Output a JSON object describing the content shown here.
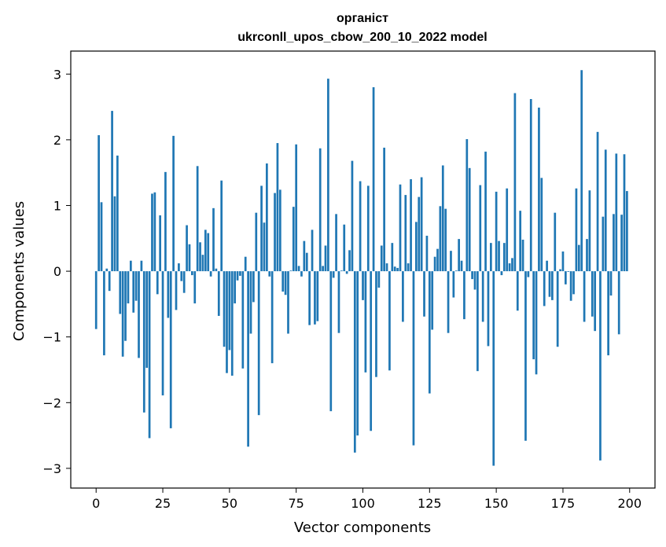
{
  "chart_data": {
    "type": "bar",
    "title_line1": "органіст",
    "title_line2": "ukrconll_upos_cbow_200_10_2022 model",
    "xlabel": "Vector components",
    "ylabel": "Components values",
    "xlim": [
      -9.5,
      209.5
    ],
    "ylim": [
      -3.3,
      3.35
    ],
    "xticks": [
      0,
      25,
      50,
      75,
      100,
      125,
      150,
      175,
      200
    ],
    "xtick_labels": [
      "0",
      "25",
      "50",
      "75",
      "100",
      "125",
      "150",
      "175",
      "200"
    ],
    "yticks": [
      -3,
      -2,
      -1,
      0,
      1,
      2,
      3
    ],
    "ytick_labels": [
      "−3",
      "−2",
      "−1",
      "0",
      "1",
      "2",
      "3"
    ],
    "bar_color": "#1f77b4",
    "grid": false,
    "x": [
      0,
      1,
      2,
      3,
      4,
      5,
      6,
      7,
      8,
      9,
      10,
      11,
      12,
      13,
      14,
      15,
      16,
      17,
      18,
      19,
      20,
      21,
      22,
      23,
      24,
      25,
      26,
      27,
      28,
      29,
      30,
      31,
      32,
      33,
      34,
      35,
      36,
      37,
      38,
      39,
      40,
      41,
      42,
      43,
      44,
      45,
      46,
      47,
      48,
      49,
      50,
      51,
      52,
      53,
      54,
      55,
      56,
      57,
      58,
      59,
      60,
      61,
      62,
      63,
      64,
      65,
      66,
      67,
      68,
      69,
      70,
      71,
      72,
      73,
      74,
      75,
      76,
      77,
      78,
      79,
      80,
      81,
      82,
      83,
      84,
      85,
      86,
      87,
      88,
      89,
      90,
      91,
      92,
      93,
      94,
      95,
      96,
      97,
      98,
      99,
      100,
      101,
      102,
      103,
      104,
      105,
      106,
      107,
      108,
      109,
      110,
      111,
      112,
      113,
      114,
      115,
      116,
      117,
      118,
      119,
      120,
      121,
      122,
      123,
      124,
      125,
      126,
      127,
      128,
      129,
      130,
      131,
      132,
      133,
      134,
      135,
      136,
      137,
      138,
      139,
      140,
      141,
      142,
      143,
      144,
      145,
      146,
      147,
      148,
      149,
      150,
      151,
      152,
      153,
      154,
      155,
      156,
      157,
      158,
      159,
      160,
      161,
      162,
      163,
      164,
      165,
      166,
      167,
      168,
      169,
      170,
      171,
      172,
      173,
      174,
      175,
      176,
      177,
      178,
      179,
      180,
      181,
      182,
      183,
      184,
      185,
      186,
      187,
      188,
      189,
      190,
      191,
      192,
      193,
      194,
      195,
      196,
      197,
      198,
      199
    ],
    "values": [
      -0.88,
      2.07,
      1.05,
      -1.28,
      0.04,
      -0.3,
      2.44,
      1.14,
      1.76,
      -0.65,
      -1.3,
      -1.06,
      -0.49,
      0.16,
      -0.63,
      -0.45,
      -1.32,
      0.16,
      -2.15,
      -1.47,
      -2.54,
      1.18,
      1.2,
      -0.35,
      0.85,
      -1.89,
      1.51,
      -0.71,
      -2.39,
      2.06,
      -0.59,
      0.12,
      -0.15,
      -0.33,
      0.7,
      0.41,
      -0.06,
      -0.49,
      1.6,
      0.44,
      0.25,
      0.63,
      0.58,
      -0.08,
      0.96,
      0.04,
      -0.68,
      1.38,
      -1.15,
      -1.55,
      -1.2,
      -1.59,
      -0.49,
      -0.14,
      -0.07,
      -1.48,
      0.22,
      -2.67,
      -0.95,
      -0.47,
      0.89,
      -2.19,
      1.3,
      0.74,
      1.64,
      -0.08,
      -1.4,
      1.19,
      1.95,
      1.24,
      -0.31,
      -0.36,
      -0.95,
      0.01,
      0.98,
      1.93,
      0.08,
      -0.08,
      0.46,
      0.28,
      -0.82,
      0.63,
      -0.81,
      -0.76,
      1.87,
      0.08,
      0.39,
      2.93,
      -2.13,
      -0.1,
      0.87,
      -0.94,
      0.01,
      0.71,
      -0.04,
      0.32,
      1.68,
      -2.76,
      -2.5,
      1.37,
      -0.44,
      -1.54,
      1.3,
      -2.43,
      2.8,
      -1.61,
      -0.25,
      0.39,
      1.88,
      0.12,
      -1.51,
      0.43,
      0.07,
      0.05,
      1.32,
      -0.77,
      1.16,
      0.12,
      1.4,
      -2.65,
      0.75,
      1.13,
      1.43,
      -0.69,
      0.54,
      -1.86,
      -0.89,
      0.22,
      0.34,
      0.99,
      1.61,
      0.95,
      -0.94,
      0.31,
      -0.4,
      0.01,
      0.49,
      0.16,
      -0.73,
      2.01,
      1.57,
      -0.12,
      -0.28,
      -1.52,
      1.31,
      -0.77,
      1.82,
      -1.14,
      0.43,
      -2.96,
      1.21,
      0.46,
      -0.06,
      0.43,
      1.26,
      0.12,
      0.2,
      2.71,
      -0.6,
      0.92,
      0.48,
      -2.58,
      -0.09,
      2.62,
      -1.34,
      -1.57,
      2.49,
      1.42,
      -0.53,
      0.16,
      -0.39,
      -0.44,
      0.89,
      -1.15,
      0.03,
      0.3,
      -0.2,
      -0.01,
      -0.45,
      -0.35,
      1.26,
      0.4,
      3.06,
      -0.77,
      0.49,
      1.23,
      -0.69,
      -0.91,
      2.12,
      -2.88,
      0.83,
      1.85,
      -1.28,
      -0.37,
      0.87,
      1.79,
      -0.96,
      0.86,
      1.78,
      1.22
    ]
  }
}
